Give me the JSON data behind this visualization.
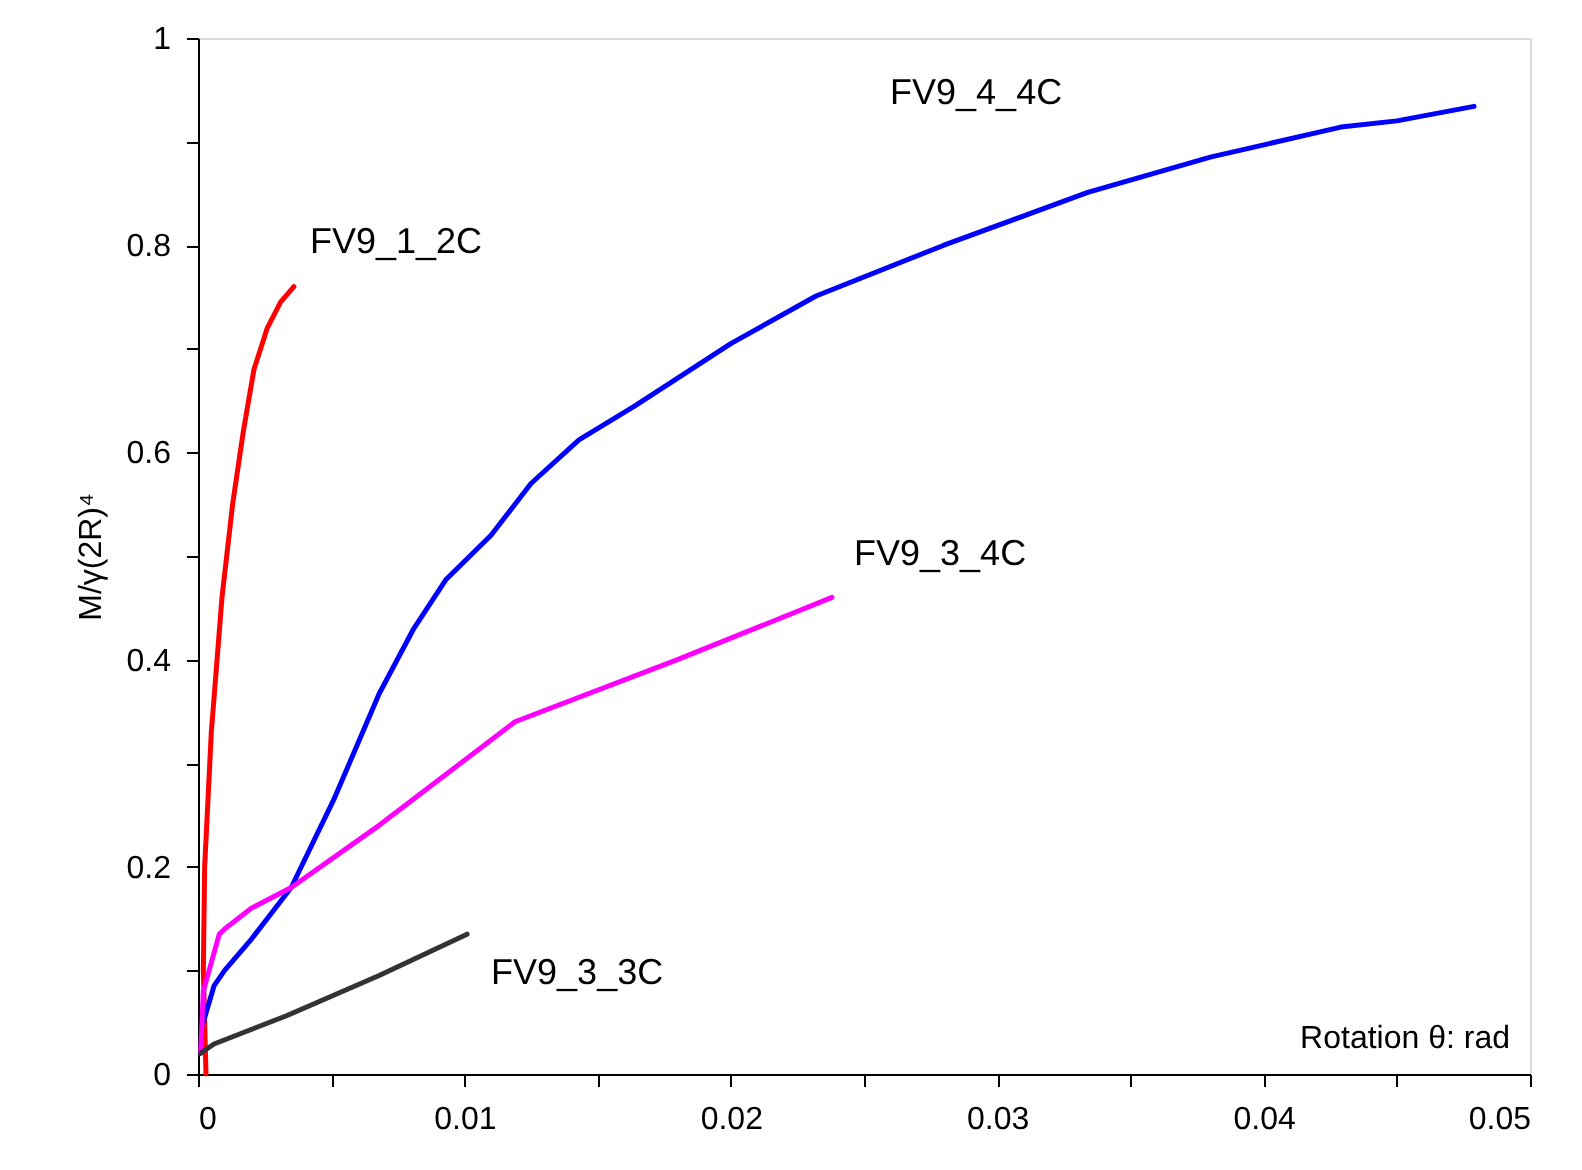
{
  "chart_data": {
    "type": "line",
    "xlabel": "Rotation θ: rad",
    "ylabel": "M/γ(2R)⁴",
    "xlim": [
      0,
      0.05
    ],
    "ylim": [
      0,
      1
    ],
    "xticks": [
      0,
      {
        "value": 0.005,
        "label": null
      },
      0.01,
      {
        "value": 0.015,
        "label": null
      },
      0.02,
      {
        "value": 0.025,
        "label": null
      },
      0.03,
      {
        "value": 0.035,
        "label": null
      },
      0.04,
      {
        "value": 0.045,
        "label": null
      },
      0.05
    ],
    "yticks": [
      0,
      {
        "value": 0.1,
        "label": null
      },
      0.2,
      {
        "value": 0.3,
        "label": null
      },
      0.4,
      {
        "value": 0.5,
        "label": null
      },
      0.6,
      {
        "value": 0.7,
        "label": null
      },
      0.8,
      {
        "value": 0.9,
        "label": null
      },
      1
    ],
    "grid": false,
    "legend": false,
    "marker": "none",
    "line_style": "solid",
    "series": [
      {
        "name": "FV9_1_2C",
        "color": "#ff0000",
        "x": [
          0.0003,
          0.0002,
          0.00025,
          0.0005,
          0.0009,
          0.0013,
          0.0017,
          0.0021,
          0.0026,
          0.0031,
          0.0036
        ],
        "values": [
          0,
          0.1,
          0.2,
          0.33,
          0.46,
          0.55,
          0.62,
          0.68,
          0.72,
          0.745,
          0.76
        ]
      },
      {
        "name": "FV9_4_4C",
        "color": "#0000ff",
        "x": [
          0.0002,
          0.0006,
          0.001,
          0.002,
          0.0035,
          0.0051,
          0.0068,
          0.0081,
          0.0093,
          0.011,
          0.0125,
          0.0143,
          0.0164,
          0.02,
          0.0232,
          0.028,
          0.0334,
          0.038,
          0.0429,
          0.045,
          0.0479
        ],
        "values": [
          0.05,
          0.085,
          0.1,
          0.13,
          0.18,
          0.265,
          0.367,
          0.43,
          0.477,
          0.52,
          0.57,
          0.612,
          0.645,
          0.705,
          0.751,
          0.8,
          0.851,
          0.885,
          0.914,
          0.92,
          0.934
        ]
      },
      {
        "name": "FV9_3_4C",
        "color": "#ff00ff",
        "x": [
          0.0001,
          0.0002,
          0.0008,
          0.001,
          0.002,
          0.0035,
          0.0068,
          0.0119,
          0.018,
          0.0238
        ],
        "values": [
          0.02,
          0.08,
          0.135,
          0.14,
          0.16,
          0.18,
          0.24,
          0.34,
          0.4,
          0.46
        ]
      },
      {
        "name": "FV9_3_3C",
        "color": "#333333",
        "x": [
          0.0001,
          0.0006,
          0.0033,
          0.0068,
          0.0101
        ],
        "values": [
          0.02,
          0.029,
          0.056,
          0.095,
          0.135
        ]
      }
    ]
  }
}
